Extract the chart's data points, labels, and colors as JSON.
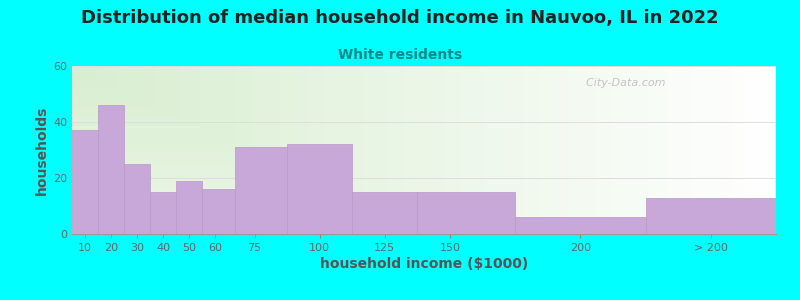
{
  "title": "Distribution of median household income in Nauvoo, IL in 2022",
  "subtitle": "White residents",
  "xlabel": "household income ($1000)",
  "ylabel": "households",
  "bar_labels": [
    "10",
    "20",
    "30",
    "40",
    "50",
    "60",
    "75",
    "100",
    "125",
    "150",
    "200",
    "> 200"
  ],
  "bar_centers": [
    10,
    20,
    30,
    40,
    50,
    60,
    75,
    100,
    125,
    150,
    200,
    250
  ],
  "bar_edges": [
    5,
    15,
    25,
    35,
    45,
    55,
    67.5,
    87.5,
    112.5,
    137.5,
    175,
    225,
    275
  ],
  "bar_values": [
    37,
    46,
    25,
    15,
    19,
    16,
    31,
    32,
    15,
    15,
    6,
    13
  ],
  "bar_color": "#C8A8D8",
  "bar_edge_color": "#B898C8",
  "background_color": "#00FFFF",
  "plot_bg_color_topleft": "#D8EED0",
  "plot_bg_color_right": "#F8FFF8",
  "plot_bg_color_bottom": "#FFFFFF",
  "title_color": "#222222",
  "subtitle_color": "#008888",
  "axis_label_color": "#555555",
  "tick_color": "#666666",
  "ylim": [
    0,
    60
  ],
  "yticks": [
    0,
    20,
    40,
    60
  ],
  "grid_color": "#DDDDDD",
  "watermark_text": "  City-Data.com",
  "watermark_color": "#BBBBBB",
  "title_fontsize": 13,
  "subtitle_fontsize": 10,
  "axis_label_fontsize": 10,
  "tick_fontsize": 8
}
